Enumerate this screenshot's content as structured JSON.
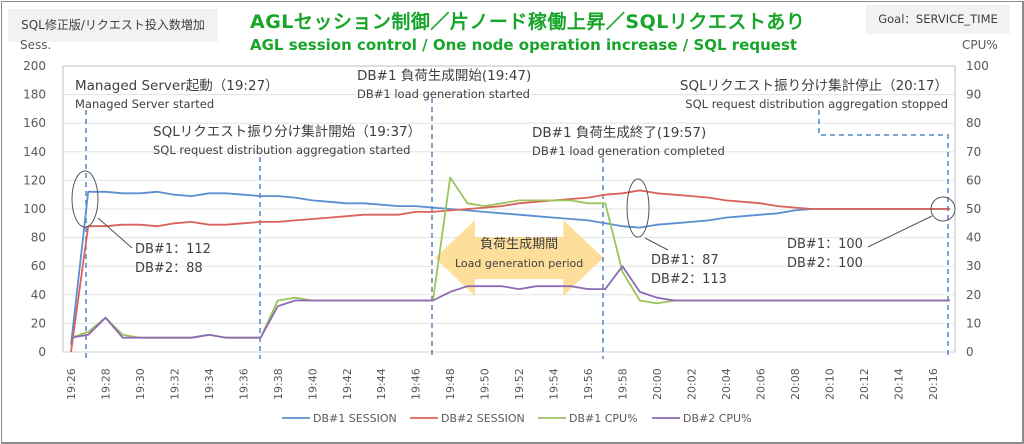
{
  "header": {
    "left_tag": "SQL修正版/リクエスト投入数増加",
    "right_tag": "Goal：SERVICE_TIME",
    "title_jp": "AGLセッション制御／片ノード稼働上昇／SQLリクエストあり",
    "title_en": "AGL session control / One node operation increase / SQL request"
  },
  "chart_data": {
    "type": "line",
    "title": "AGLセッション制御／片ノード稼働上昇／SQLリクエストあり",
    "subtitle": "AGL session control / One node operation increase / SQL request",
    "xlabel": "",
    "ylabel": "Sess.",
    "y2label": "CPU%",
    "ylim": [
      0,
      200
    ],
    "y2lim": [
      0,
      100
    ],
    "yticks": [
      "0",
      "20",
      "40",
      "60",
      "80",
      "100",
      "120",
      "140",
      "160",
      "180",
      "200"
    ],
    "y2ticks": [
      "0",
      "10",
      "20",
      "30",
      "40",
      "50",
      "60",
      "70",
      "80",
      "90",
      "100"
    ],
    "grid": true,
    "legend_position": "bottom",
    "x": [
      "19:26",
      "19:27",
      "19:28",
      "19:29",
      "19:30",
      "19:31",
      "19:32",
      "19:33",
      "19:34",
      "19:35",
      "19:36",
      "19:37",
      "19:38",
      "19:39",
      "19:40",
      "19:41",
      "19:42",
      "19:43",
      "19:44",
      "19:45",
      "19:46",
      "19:47",
      "19:48",
      "19:49",
      "19:50",
      "19:51",
      "19:52",
      "19:53",
      "19:54",
      "19:55",
      "19:56",
      "19:57",
      "19:58",
      "19:59",
      "20:00",
      "20:01",
      "20:02",
      "20:03",
      "20:04",
      "20:05",
      "20:06",
      "20:07",
      "20:08",
      "20:09",
      "20:10",
      "20:11",
      "20:12",
      "20:13",
      "20:14",
      "20:15",
      "20:16",
      "20:17"
    ],
    "xtick_labels": [
      "19:26",
      "19:28",
      "19:30",
      "19:32",
      "19:34",
      "19:36",
      "19:38",
      "19:40",
      "19:42",
      "19:44",
      "19:46",
      "19:48",
      "19:50",
      "19:52",
      "19:54",
      "19:56",
      "19:58",
      "20:00",
      "20:02",
      "20:04",
      "20:06",
      "20:08",
      "20:10",
      "20:12",
      "20:14",
      "20:16"
    ],
    "series": [
      {
        "name": "DB#1 SESSION",
        "axis": "left",
        "color": "#5b8fcf",
        "values": [
          5,
          112,
          112,
          111,
          111,
          112,
          110,
          109,
          111,
          111,
          110,
          109,
          109,
          108,
          106,
          105,
          104,
          104,
          103,
          102,
          102,
          101,
          100,
          99,
          98,
          97,
          96,
          95,
          94,
          93,
          92,
          90,
          88,
          87,
          89,
          90,
          91,
          92,
          94,
          95,
          96,
          97,
          99,
          100,
          100,
          100,
          100,
          100,
          100,
          100,
          100,
          100
        ]
      },
      {
        "name": "DB#2 SESSION",
        "axis": "left",
        "color": "#d9625a",
        "values": [
          0,
          88,
          88,
          89,
          89,
          88,
          90,
          91,
          89,
          89,
          90,
          91,
          91,
          92,
          93,
          94,
          95,
          96,
          96,
          96,
          98,
          98,
          99,
          100,
          101,
          102,
          104,
          105,
          106,
          107,
          108,
          110,
          111,
          113,
          111,
          110,
          109,
          108,
          106,
          105,
          104,
          102,
          101,
          100,
          100,
          100,
          100,
          100,
          100,
          100,
          100,
          100
        ]
      },
      {
        "name": "DB#1 CPU%",
        "axis": "right",
        "color": "#9bc45a",
        "values": [
          5,
          7,
          12,
          6,
          5,
          5,
          5,
          5,
          6,
          5,
          5,
          5,
          18,
          19,
          18,
          18,
          18,
          18,
          18,
          18,
          18,
          18,
          61,
          52,
          51,
          52,
          53,
          53,
          53,
          53,
          52,
          52,
          28,
          18,
          17,
          18,
          18,
          18,
          18,
          18,
          18,
          18,
          18,
          18,
          18,
          18,
          18,
          18,
          18,
          18,
          18,
          18
        ]
      },
      {
        "name": "DB#2 CPU%",
        "axis": "right",
        "color": "#8e6ab5",
        "values": [
          5,
          6,
          12,
          5,
          5,
          5,
          5,
          5,
          6,
          5,
          5,
          5,
          16,
          18,
          18,
          18,
          18,
          18,
          18,
          18,
          18,
          18,
          21,
          23,
          23,
          23,
          22,
          23,
          23,
          23,
          22,
          22,
          30,
          21,
          19,
          18,
          18,
          18,
          18,
          18,
          18,
          18,
          18,
          18,
          18,
          18,
          18,
          18,
          18,
          18,
          18,
          18
        ]
      }
    ],
    "events": [
      {
        "time": "19:27",
        "label_jp": "Managed Server起動（19:27）",
        "label_en": "Managed Server started"
      },
      {
        "time": "19:37",
        "label_jp": "SQLリクエスト振り分け集計開始（19:37）",
        "label_en": "SQL request distribution aggregation started"
      },
      {
        "time": "19:47",
        "label_jp": "DB#1 負荷生成開始(19:47)",
        "label_en": "DB#1 load generation started"
      },
      {
        "time": "19:57",
        "label_jp": "DB#1 負荷生成終了(19:57)",
        "label_en": "DB#1 load generation completed"
      },
      {
        "time": "20:17",
        "label_jp": "SQLリクエスト振り分け集計停止（20:17）",
        "label_en": "SQL request distribution aggregation stopped"
      }
    ],
    "callouts": [
      {
        "at": "19:27",
        "line1": "DB#1：112",
        "line2": "DB#2：88"
      },
      {
        "at": "19:59",
        "line1": "DB#1：87",
        "line2": "DB#2：113"
      },
      {
        "at": "20:17",
        "line1": "DB#1：100",
        "line2": "DB#2：100"
      }
    ],
    "period_arrow": {
      "from": "19:47",
      "to": "19:57",
      "label_jp": "負荷生成期間",
      "label_en": "Load generation period",
      "color": "#fdd98a"
    }
  }
}
